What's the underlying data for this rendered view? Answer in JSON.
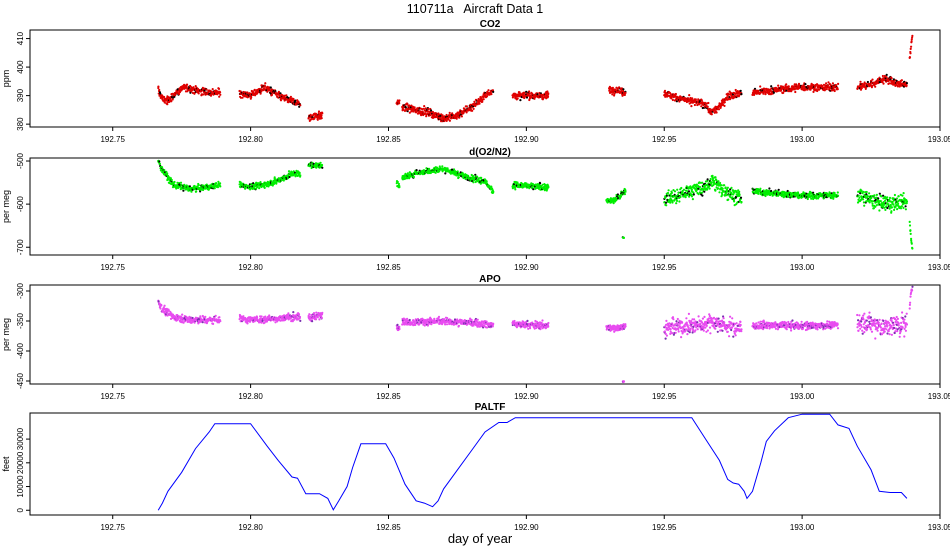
{
  "figure": {
    "title": "110711a   Aircraft Data 1",
    "xlabel": "day of year",
    "xlim": [
      192.72,
      193.05
    ],
    "xticks": [
      "192.75",
      "192.80",
      "192.85",
      "192.90",
      "192.95",
      "193.00",
      "193.05"
    ]
  },
  "chart_data": [
    {
      "type": "scatter",
      "title": "CO2",
      "ylabel": "ppm",
      "ylim": [
        379,
        413
      ],
      "yticks": [
        380,
        390,
        400,
        410
      ],
      "point_color": "#e00000",
      "edge_color": "#000000",
      "noise": 1.1,
      "segments": [
        {
          "points": [
            [
              192.7665,
              392
            ],
            [
              192.768,
              389
            ],
            [
              192.77,
              388
            ],
            [
              192.773,
              391
            ],
            [
              192.776,
              393
            ],
            [
              192.78,
              392
            ],
            [
              192.785,
              391
            ],
            [
              192.789,
              391
            ]
          ]
        },
        {
          "points": [
            [
              192.796,
              391
            ],
            [
              192.8,
              390
            ],
            [
              192.805,
              393
            ],
            [
              192.81,
              390
            ],
            [
              192.815,
              388
            ],
            [
              192.818,
              387
            ]
          ]
        },
        {
          "points": [
            [
              192.821,
              382
            ],
            [
              192.823,
              383
            ],
            [
              192.826,
              383
            ]
          ]
        },
        {
          "points": [
            [
              192.853,
              387
            ],
            [
              192.854,
              388
            ]
          ]
        },
        {
          "points": [
            [
              192.855,
              386
            ],
            [
              192.86,
              385
            ],
            [
              192.865,
              384
            ],
            [
              192.87,
              382
            ],
            [
              192.875,
              383
            ],
            [
              192.88,
              386
            ],
            [
              192.885,
              390
            ],
            [
              192.888,
              392
            ]
          ]
        },
        {
          "points": [
            [
              192.895,
              390
            ],
            [
              192.9,
              390
            ],
            [
              192.905,
              390
            ],
            [
              192.908,
              390
            ]
          ]
        },
        {
          "points": [
            [
              192.93,
              392
            ],
            [
              192.933,
              392
            ],
            [
              192.936,
              391
            ]
          ]
        },
        {
          "points": [
            [
              192.95,
              391
            ],
            [
              192.955,
              389
            ],
            [
              192.96,
              388
            ],
            [
              192.965,
              387
            ],
            [
              192.967,
              384
            ],
            [
              192.97,
              386
            ],
            [
              192.973,
              390
            ],
            [
              192.978,
              391
            ]
          ]
        },
        {
          "points": [
            [
              192.982,
              391
            ],
            [
              192.99,
              392
            ],
            [
              193.0,
              393
            ],
            [
              193.01,
              393
            ],
            [
              193.013,
              393
            ]
          ]
        },
        {
          "points": [
            [
              193.02,
              393
            ],
            [
              193.025,
              394
            ],
            [
              193.03,
              396
            ],
            [
              193.035,
              394
            ],
            [
              193.038,
              394
            ]
          ]
        },
        {
          "points": [
            [
              193.039,
              403
            ],
            [
              193.0395,
              407
            ],
            [
              193.04,
              411
            ]
          ],
          "noise": 0.8
        }
      ]
    },
    {
      "type": "scatter",
      "title": "d(O2/N2)",
      "ylabel": "per meg",
      "ylim": [
        -718,
        -493
      ],
      "yticks": [
        -700,
        -600,
        -500
      ],
      "point_color": "#00ee00",
      "edge_color": "#000000",
      "noise": 6,
      "segments": [
        {
          "points": [
            [
              192.7665,
              -500
            ],
            [
              192.768,
              -520
            ],
            [
              192.772,
              -555
            ],
            [
              192.778,
              -565
            ],
            [
              192.785,
              -560
            ],
            [
              192.789,
              -555
            ]
          ]
        },
        {
          "points": [
            [
              192.796,
              -555
            ],
            [
              192.8,
              -560
            ],
            [
              192.805,
              -555
            ],
            [
              192.81,
              -545
            ],
            [
              192.815,
              -530
            ],
            [
              192.818,
              -530
            ]
          ]
        },
        {
          "points": [
            [
              192.821,
              -508
            ],
            [
              192.823,
              -510
            ],
            [
              192.826,
              -512
            ]
          ]
        },
        {
          "points": [
            [
              192.853,
              -552
            ],
            [
              192.854,
              -556
            ]
          ]
        },
        {
          "points": [
            [
              192.855,
              -540
            ],
            [
              192.86,
              -528
            ],
            [
              192.865,
              -522
            ],
            [
              192.87,
              -518
            ],
            [
              192.875,
              -530
            ],
            [
              192.88,
              -540
            ],
            [
              192.885,
              -548
            ],
            [
              192.888,
              -570
            ]
          ]
        },
        {
          "points": [
            [
              192.895,
              -555
            ],
            [
              192.9,
              -558
            ],
            [
              192.905,
              -560
            ],
            [
              192.908,
              -562
            ]
          ]
        },
        {
          "points": [
            [
              192.929,
              -593
            ],
            [
              192.932,
              -590
            ],
            [
              192.934,
              -580
            ],
            [
              192.936,
              -567
            ]
          ]
        },
        {
          "points": [
            [
              192.935,
              -677
            ],
            [
              192.9351,
              -678
            ]
          ],
          "noise": 1
        },
        {
          "points": [
            [
              192.95,
              -590
            ],
            [
              192.955,
              -580
            ],
            [
              192.96,
              -568
            ],
            [
              192.965,
              -562
            ],
            [
              192.967,
              -545
            ],
            [
              192.97,
              -560
            ],
            [
              192.975,
              -580
            ],
            [
              192.978,
              -590
            ]
          ],
          "noise": 14
        },
        {
          "points": [
            [
              192.982,
              -570
            ],
            [
              192.99,
              -575
            ],
            [
              193.0,
              -580
            ],
            [
              193.01,
              -580
            ],
            [
              193.013,
              -580
            ]
          ]
        },
        {
          "points": [
            [
              193.02,
              -580
            ],
            [
              193.025,
              -590
            ],
            [
              193.03,
              -600
            ],
            [
              193.035,
              -595
            ],
            [
              193.038,
              -598
            ]
          ],
          "noise": 15
        },
        {
          "points": [
            [
              193.039,
              -640
            ],
            [
              193.0395,
              -680
            ],
            [
              193.04,
              -705
            ]
          ],
          "noise": 4
        }
      ]
    },
    {
      "type": "scatter",
      "title": "APO",
      "ylabel": "per meg",
      "ylim": [
        -455,
        -290
      ],
      "yticks": [
        -450,
        -400,
        -350,
        -300
      ],
      "point_color": "#e84cf0",
      "edge_color": "#7a2fb0",
      "noise": 5,
      "segments": [
        {
          "points": [
            [
              192.7665,
              -318
            ],
            [
              192.768,
              -330
            ],
            [
              192.772,
              -343
            ],
            [
              192.778,
              -348
            ],
            [
              192.785,
              -348
            ],
            [
              192.789,
              -347
            ]
          ]
        },
        {
          "points": [
            [
              192.796,
              -345
            ],
            [
              192.8,
              -348
            ],
            [
              192.805,
              -347
            ],
            [
              192.81,
              -346
            ],
            [
              192.815,
              -343
            ],
            [
              192.818,
              -345
            ]
          ]
        },
        {
          "points": [
            [
              192.821,
              -345
            ],
            [
              192.823,
              -343
            ],
            [
              192.826,
              -340
            ]
          ]
        },
        {
          "points": [
            [
              192.853,
              -357
            ],
            [
              192.854,
              -360
            ]
          ]
        },
        {
          "points": [
            [
              192.855,
              -350
            ],
            [
              192.86,
              -352
            ],
            [
              192.865,
              -351
            ],
            [
              192.87,
              -350
            ],
            [
              192.875,
              -352
            ],
            [
              192.88,
              -353
            ],
            [
              192.885,
              -355
            ],
            [
              192.888,
              -357
            ]
          ]
        },
        {
          "points": [
            [
              192.895,
              -355
            ],
            [
              192.9,
              -356
            ],
            [
              192.905,
              -357
            ],
            [
              192.908,
              -358
            ]
          ]
        },
        {
          "points": [
            [
              192.929,
              -360
            ],
            [
              192.932,
              -362
            ],
            [
              192.934,
              -360
            ],
            [
              192.936,
              -358
            ]
          ]
        },
        {
          "points": [
            [
              192.935,
              -450
            ],
            [
              192.9351,
              -451
            ]
          ],
          "noise": 1
        },
        {
          "points": [
            [
              192.95,
              -362
            ],
            [
              192.955,
              -360
            ],
            [
              192.96,
              -358
            ],
            [
              192.965,
              -355
            ],
            [
              192.967,
              -350
            ],
            [
              192.97,
              -355
            ],
            [
              192.975,
              -360
            ],
            [
              192.978,
              -362
            ]
          ],
          "noise": 12
        },
        {
          "points": [
            [
              192.982,
              -358
            ],
            [
              192.99,
              -357
            ],
            [
              193.0,
              -358
            ],
            [
              193.01,
              -357
            ],
            [
              193.013,
              -356
            ]
          ]
        },
        {
          "points": [
            [
              193.02,
              -352
            ],
            [
              193.025,
              -355
            ],
            [
              193.03,
              -360
            ],
            [
              193.035,
              -358
            ],
            [
              193.038,
              -355
            ]
          ],
          "noise": 14
        },
        {
          "points": [
            [
              193.039,
              -330
            ],
            [
              193.0395,
              -300
            ],
            [
              193.04,
              -295
            ]
          ],
          "noise": 3
        }
      ]
    },
    {
      "type": "line",
      "title": "PALTF",
      "ylabel": "feet",
      "ylim": [
        -2000,
        41000
      ],
      "yticks": [
        0,
        10000,
        20000,
        30000
      ],
      "line_color": "#0000ff",
      "x": [
        192.7665,
        192.768,
        192.77,
        192.775,
        192.78,
        192.785,
        192.787,
        192.8,
        192.806,
        192.81,
        192.815,
        192.817,
        192.82,
        192.825,
        192.828,
        192.83,
        192.832,
        192.835,
        192.837,
        192.84,
        192.849,
        192.852,
        192.856,
        192.86,
        192.863,
        192.866,
        192.868,
        192.87,
        192.875,
        192.88,
        192.885,
        192.89,
        192.893,
        192.896,
        192.9,
        192.93,
        192.96,
        192.965,
        192.97,
        192.973,
        192.975,
        192.977,
        192.979,
        192.98,
        192.982,
        192.985,
        192.987,
        192.99,
        192.995,
        193.0,
        193.005,
        193.01,
        193.013,
        193.017,
        193.02,
        193.025,
        193.028,
        193.032,
        193.036,
        193.038
      ],
      "values": [
        0,
        3000,
        8000,
        16000,
        26000,
        33000,
        36500,
        36500,
        27000,
        21000,
        14000,
        13500,
        7000,
        7000,
        5000,
        200,
        4000,
        10000,
        18000,
        28000,
        28000,
        22000,
        11000,
        4000,
        3000,
        1500,
        4000,
        9000,
        17000,
        25000,
        33000,
        37000,
        37000,
        39000,
        39000,
        39000,
        39000,
        30000,
        21000,
        13000,
        11500,
        11000,
        8000,
        5000,
        8000,
        20000,
        29000,
        33500,
        39000,
        40500,
        40500,
        40500,
        36000,
        34500,
        27000,
        17000,
        8000,
        7500,
        7500,
        5000
      ]
    }
  ]
}
